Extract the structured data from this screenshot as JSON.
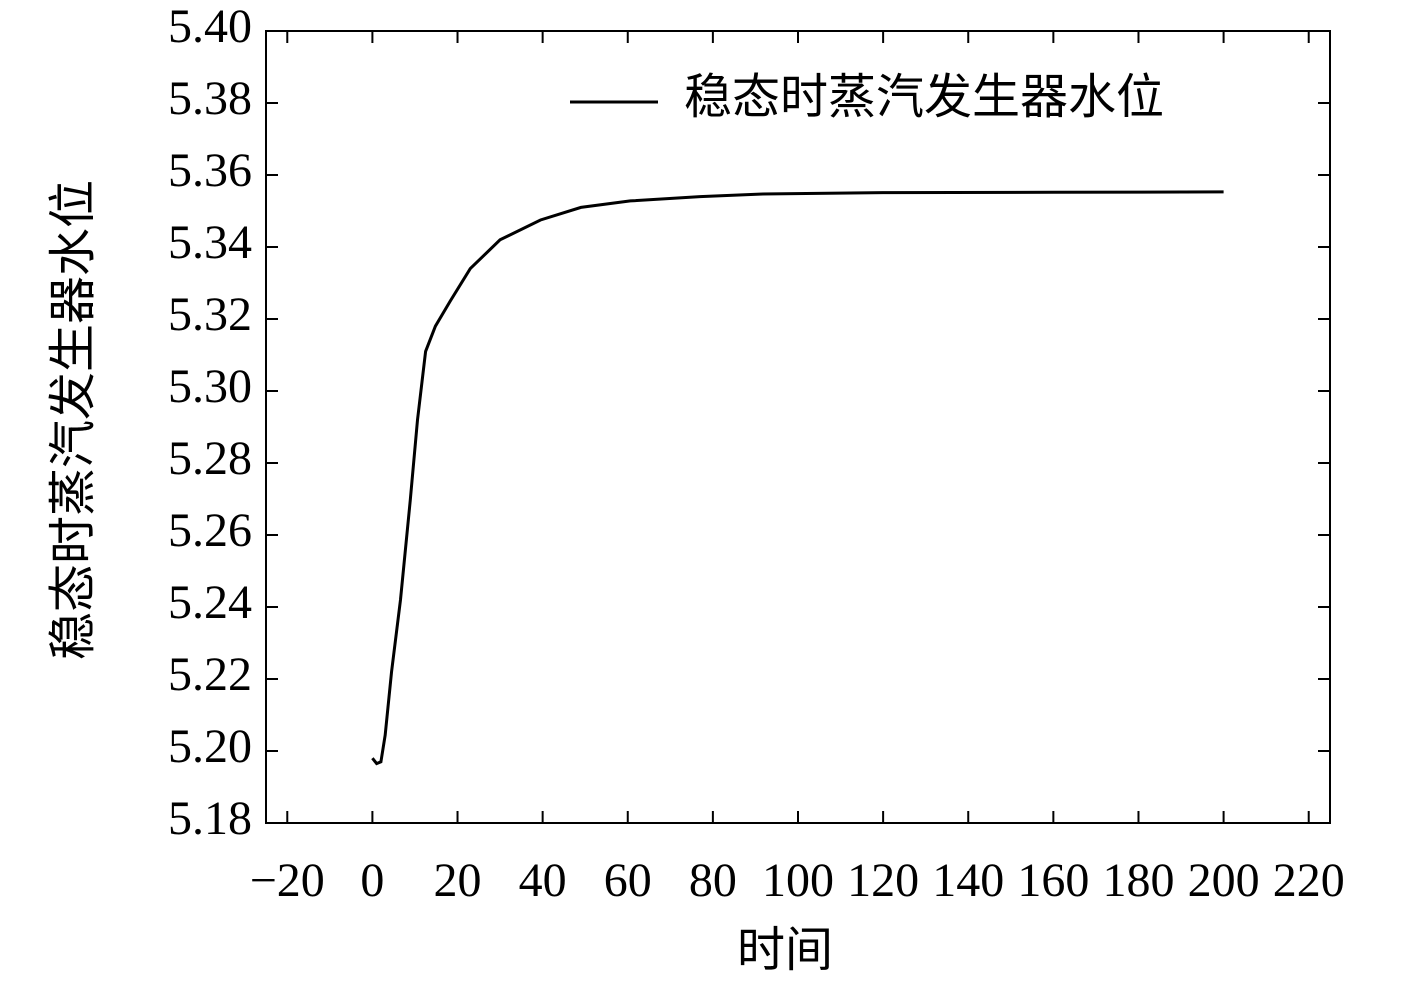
{
  "chart_data": {
    "type": "line",
    "x_label": "时间",
    "y_label": "稳态时蒸汽发生器水位",
    "x": [
      0,
      1,
      2,
      3,
      4.5,
      6.6,
      8.9,
      10.6,
      12.5,
      14.8,
      18.3,
      23,
      30,
      39.5,
      49,
      60.6,
      77,
      91,
      120,
      160,
      200
    ],
    "series": [
      {
        "name": "稳态时蒸汽发生器水位",
        "color": "#000000",
        "values": [
          5.198,
          5.1965,
          5.197,
          5.2044,
          5.222,
          5.242,
          5.2697,
          5.292,
          5.311,
          5.318,
          5.325,
          5.334,
          5.342,
          5.3475,
          5.351,
          5.3528,
          5.354,
          5.3547,
          5.3551,
          5.3552,
          5.3553
        ]
      }
    ],
    "xlim": [
      -25,
      225
    ],
    "xticks": [
      {
        "value": -20,
        "label": "−20"
      },
      0,
      20,
      40,
      60,
      80,
      100,
      120,
      140,
      160,
      180,
      200,
      220
    ],
    "ylim": [
      5.18,
      5.4
    ],
    "yticks": [
      5.18,
      {
        "value": 5.2,
        "label": "5.20"
      },
      5.22,
      5.24,
      5.26,
      5.28,
      {
        "value": 5.3,
        "label": "5.30"
      },
      5.32,
      5.34,
      5.36,
      5.38,
      {
        "value": 5.4,
        "label": "5.40"
      }
    ],
    "legend": "upper right"
  }
}
